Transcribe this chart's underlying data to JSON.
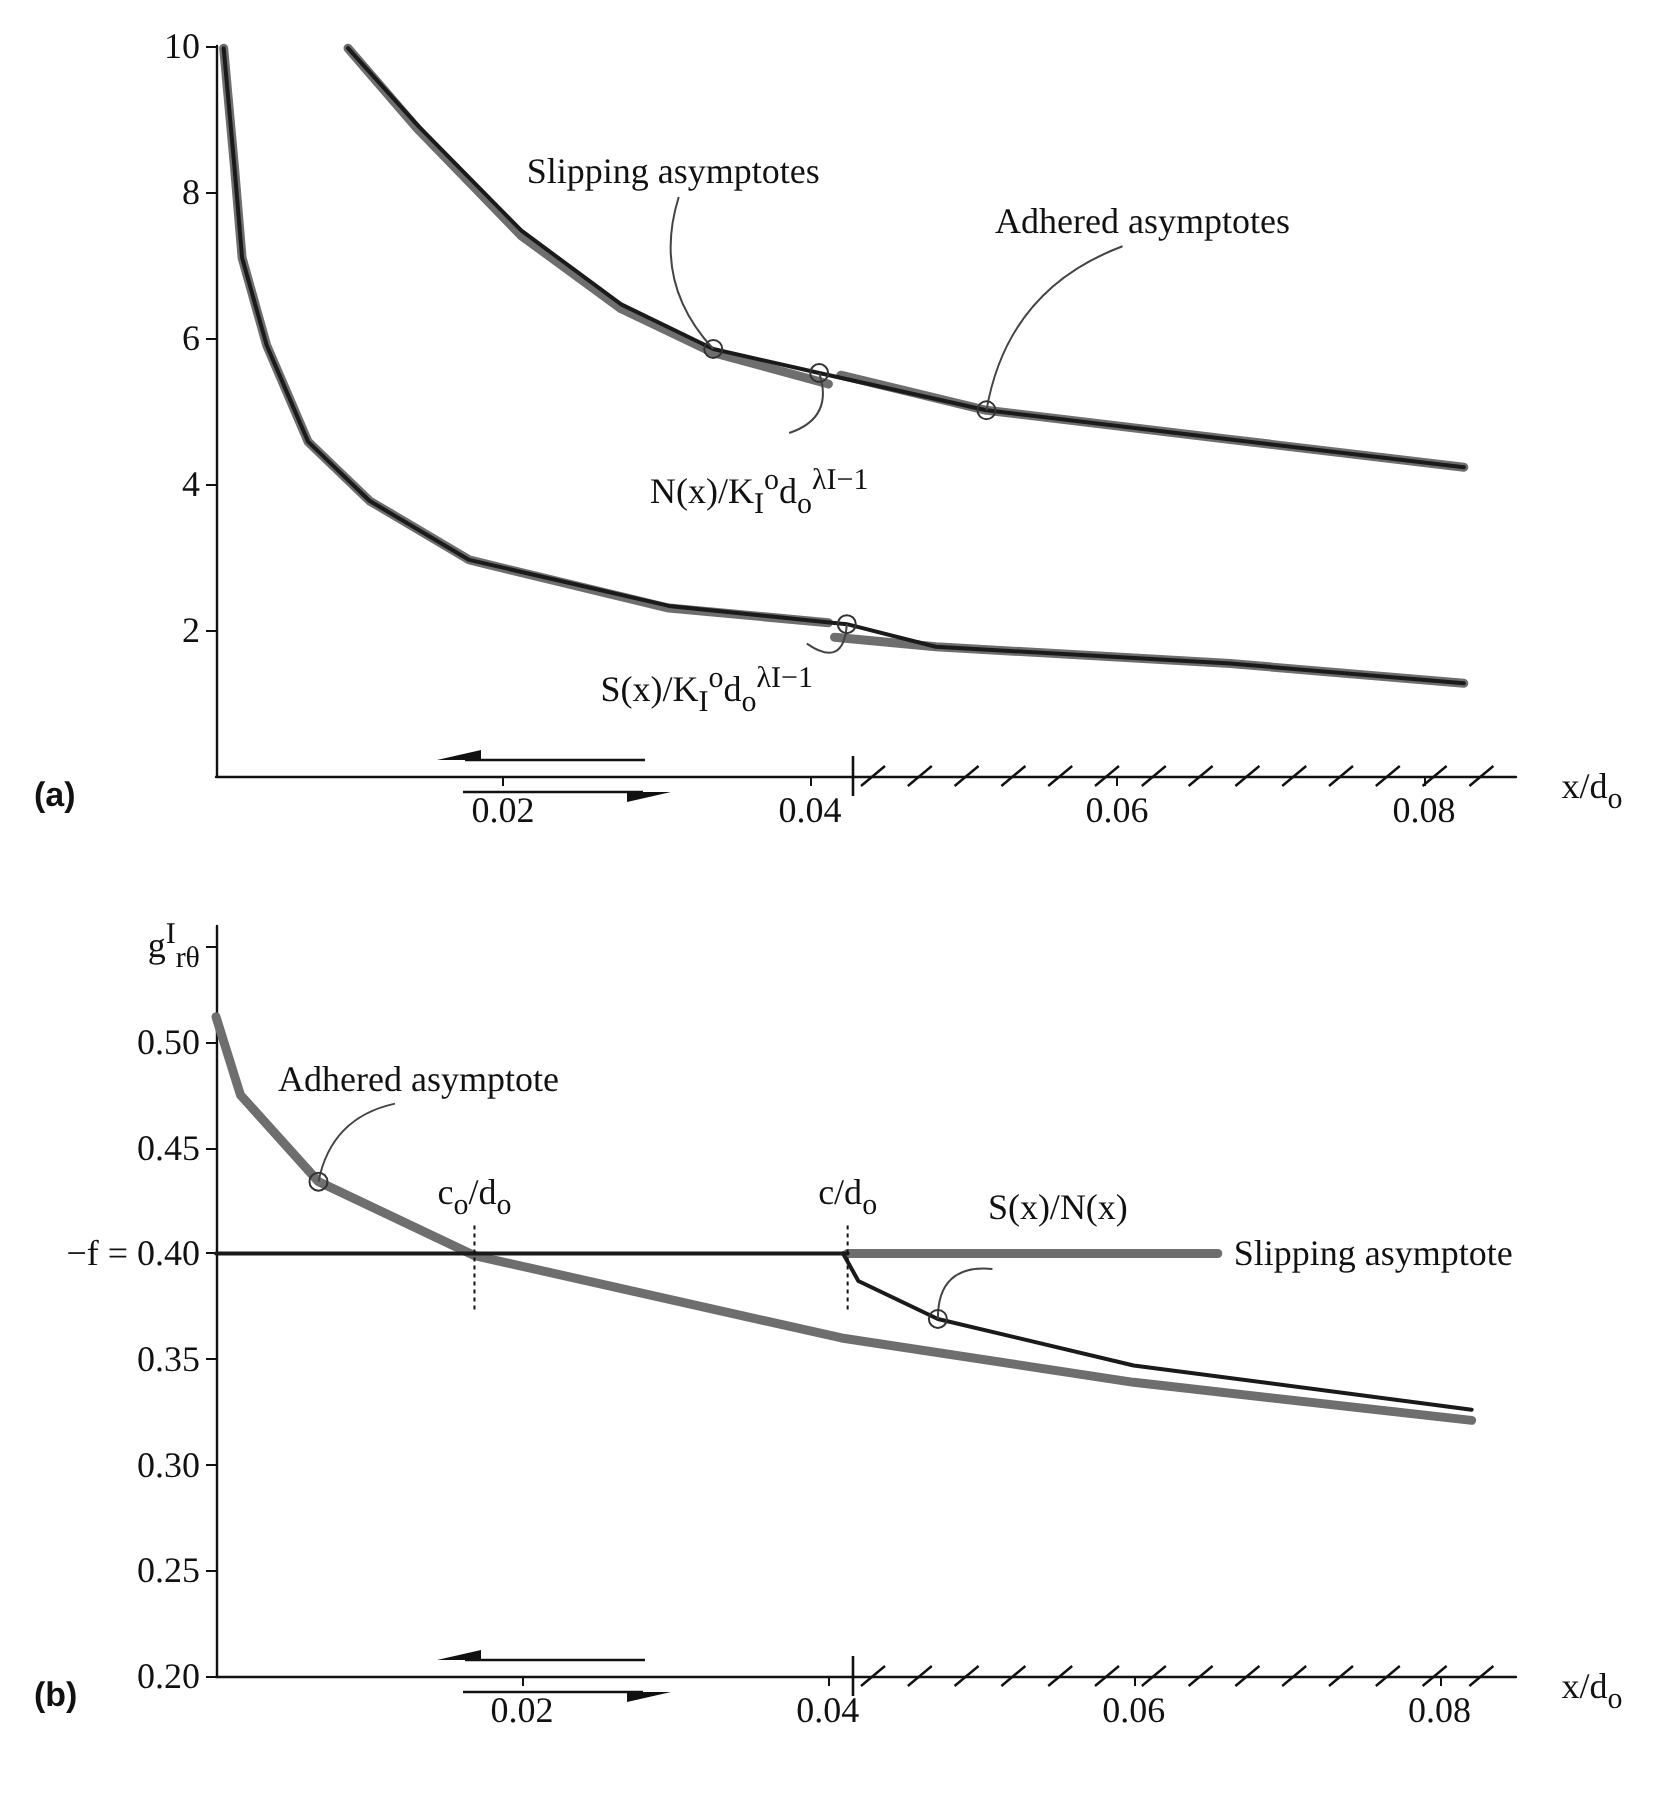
{
  "chart_data": [
    {
      "type": "line",
      "title": "(a)",
      "xlabel": "x/d$_{o}$",
      "xlim": [
        0.0013,
        0.086
      ],
      "xticks": [
        0.02,
        0.04,
        0.06,
        0.08
      ],
      "ylim": [
        0,
        10
      ],
      "yticks": [
        2,
        4,
        6,
        8,
        10
      ],
      "marker": "none",
      "line_style": "solid",
      "grid": false,
      "series": [
        {
          "color": "#6e6e6e",
          "x": [
            0.0099,
            0.0145,
            0.0212,
            0.0277,
            0.0337,
            0.0412
          ],
          "values": [
            9.97,
            8.85,
            7.4,
            6.4,
            5.8,
            5.37
          ]
        },
        {
          "color": "#6e6e6e",
          "x": [
            0.042,
            0.0515,
            0.0674,
            0.0826
          ],
          "values": [
            5.49,
            5.01,
            4.61,
            4.23
          ]
        },
        {
          "color": "#6e6e6e",
          "x": [
            0.0018,
            0.0025,
            0.003,
            0.0046,
            0.0073,
            0.0113,
            0.0178,
            0.0308,
            0.0412
          ],
          "values": [
            9.97,
            8.35,
            7.1,
            5.9,
            4.58,
            3.77,
            2.96,
            2.3,
            2.1
          ]
        },
        {
          "color": "#6e6e6e",
          "x": [
            0.0416,
            0.0482,
            0.0674,
            0.0826
          ],
          "values": [
            1.9,
            1.77,
            1.54,
            1.27
          ]
        },
        {
          "color": "#1a1a1a",
          "x": [
            0.0099,
            0.0145,
            0.0212,
            0.0277,
            0.0337,
            0.0406,
            0.0515,
            0.0674,
            0.0826
          ],
          "values": [
            9.97,
            8.9,
            7.47,
            6.46,
            5.85,
            5.52,
            5.01,
            4.61,
            4.23
          ]
        },
        {
          "color": "#1a1a1a",
          "x": [
            0.0018,
            0.0025,
            0.003,
            0.0046,
            0.0073,
            0.0113,
            0.0178,
            0.0308,
            0.0424,
            0.0482,
            0.0674,
            0.0826
          ],
          "values": [
            9.97,
            8.35,
            7.1,
            5.9,
            4.58,
            3.77,
            2.96,
            2.33,
            2.08,
            1.77,
            1.54,
            1.27
          ]
        }
      ],
      "annotations": [
        {
          "text": "Slipping asymptotes",
          "x": 0.0337,
          "y": 5.85
        },
        {
          "text": "Adhered asymptotes",
          "x": 0.0515,
          "y": 5.01
        },
        {
          "text": "N(x)/K$_{I}$$^{o}$d$_{o}$$^{λI−1}$",
          "x": 0.0406,
          "y": 5.52
        },
        {
          "text": "S(x)/K$_{I}$$^{o}$d$_{o}$$^{λI−1}$",
          "x": 0.0424,
          "y": 2.08
        }
      ]
    },
    {
      "type": "line",
      "title": "(b)",
      "xlabel": "x/d$_{o}$",
      "xlim": [
        0,
        0.085
      ],
      "xticks": [
        0.02,
        0.04,
        0.06,
        0.08
      ],
      "ylim": [
        0.2,
        0.555
      ],
      "yticks": [
        {
          "value": 0.2,
          "label": "0.20"
        },
        {
          "value": 0.25,
          "label": "0.25"
        },
        {
          "value": 0.3,
          "label": "0.30"
        },
        {
          "value": 0.35,
          "label": "0.35"
        },
        {
          "value": 0.4,
          "label": "−f = 0.40"
        },
        {
          "value": 0.45,
          "label": "0.45"
        },
        {
          "value": 0.5,
          "label": "0.50"
        },
        {
          "value": 0.545,
          "label": "g$^{I}$$_{rθ}$"
        }
      ],
      "marker": "none",
      "line_style": "solid",
      "grid": false,
      "series": [
        {
          "color": "#6e6e6e",
          "x": [
            0,
            0.0016,
            0.0067,
            0.0169,
            0.0409,
            0.06,
            0.0821
          ],
          "values": [
            0.512,
            0.475,
            0.434,
            0.399,
            0.36,
            0.339,
            0.321
          ]
        },
        {
          "color": "#6e6e6e",
          "x": [
            0.0413,
            0.0655
          ],
          "values": [
            0.4,
            0.4
          ]
        },
        {
          "color": "#1a1a1a",
          "x": [
            0,
            0.0413
          ],
          "values": [
            0.4,
            0.4
          ]
        },
        {
          "color": "#1a1a1a",
          "x": [
            0.041,
            0.042,
            0.0472,
            0.06,
            0.0821
          ],
          "values": [
            0.4,
            0.387,
            0.369,
            0.347,
            0.326
          ]
        }
      ],
      "annotations": [
        {
          "text": "Adhered asymptote",
          "x": 0.0067,
          "y": 0.434
        },
        {
          "text": "c$_{o}$/d$_{o}$",
          "x": 0.0169,
          "y": 0.4
        },
        {
          "text": "c/d$_{o}$",
          "x": 0.0413,
          "y": 0.4
        },
        {
          "text": "S(x)/N(x)",
          "x": 0.0472,
          "y": 0.369
        },
        {
          "text": "Slipping asymptote",
          "x": 0.0655,
          "y": 0.4
        }
      ]
    }
  ]
}
